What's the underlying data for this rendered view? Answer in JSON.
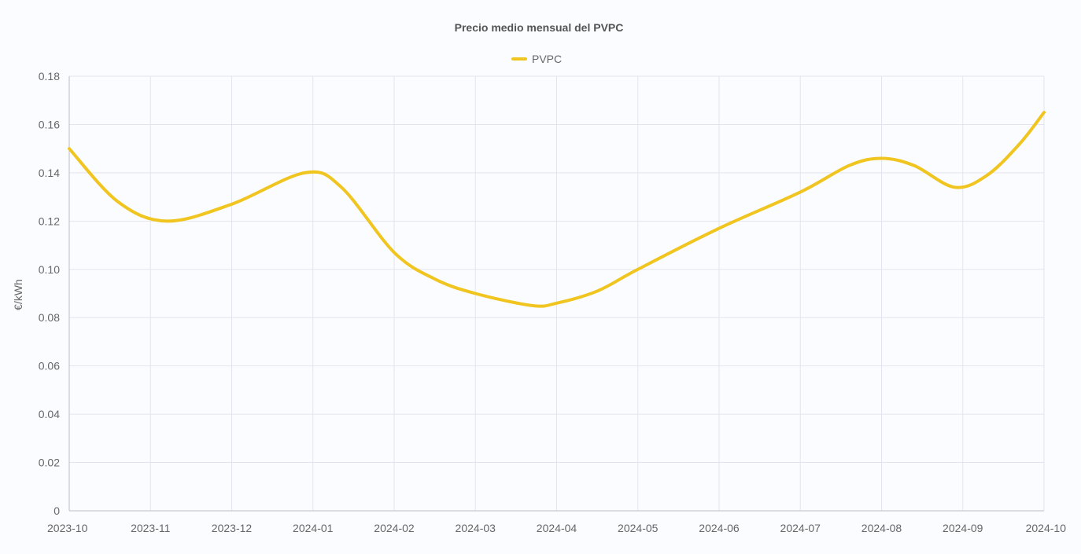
{
  "chart_data": {
    "type": "line",
    "title": "Precio medio mensual del PVPC",
    "ylabel": "€/kWh",
    "xlabel": "",
    "legend_position": "top-center",
    "grid": true,
    "ylim": [
      0,
      0.18
    ],
    "yticks": [
      "0",
      "0.02",
      "0.04",
      "0.06",
      "0.08",
      "0.10",
      "0.12",
      "0.14",
      "0.16",
      "0.18"
    ],
    "ytick_values": [
      0,
      0.02,
      0.04,
      0.06,
      0.08,
      0.1,
      0.12,
      0.14,
      0.16,
      0.18
    ],
    "x": [
      "2023-10",
      "2023-11",
      "2023-12",
      "2024-01",
      "2024-02",
      "2024-03",
      "2024-04",
      "2024-05",
      "2024-06",
      "2024-07",
      "2024-08",
      "2024-09",
      "2024-10"
    ],
    "series": [
      {
        "name": "PVPC",
        "color": "#f0c520",
        "points": [
          {
            "x": 0.0,
            "y": 0.15
          },
          {
            "x": 0.6,
            "y": 0.128
          },
          {
            "x": 1.2,
            "y": 0.12
          },
          {
            "x": 2.0,
            "y": 0.127
          },
          {
            "x": 2.9,
            "y": 0.14
          },
          {
            "x": 3.35,
            "y": 0.134
          },
          {
            "x": 4.0,
            "y": 0.107
          },
          {
            "x": 4.5,
            "y": 0.096
          },
          {
            "x": 5.0,
            "y": 0.09
          },
          {
            "x": 5.7,
            "y": 0.085
          },
          {
            "x": 6.0,
            "y": 0.086
          },
          {
            "x": 6.5,
            "y": 0.091
          },
          {
            "x": 7.0,
            "y": 0.1
          },
          {
            "x": 8.0,
            "y": 0.117
          },
          {
            "x": 9.0,
            "y": 0.132
          },
          {
            "x": 9.6,
            "y": 0.143
          },
          {
            "x": 10.0,
            "y": 0.146
          },
          {
            "x": 10.4,
            "y": 0.143
          },
          {
            "x": 10.9,
            "y": 0.134
          },
          {
            "x": 11.3,
            "y": 0.139
          },
          {
            "x": 11.7,
            "y": 0.152
          },
          {
            "x": 12.0,
            "y": 0.165
          }
        ]
      }
    ]
  }
}
